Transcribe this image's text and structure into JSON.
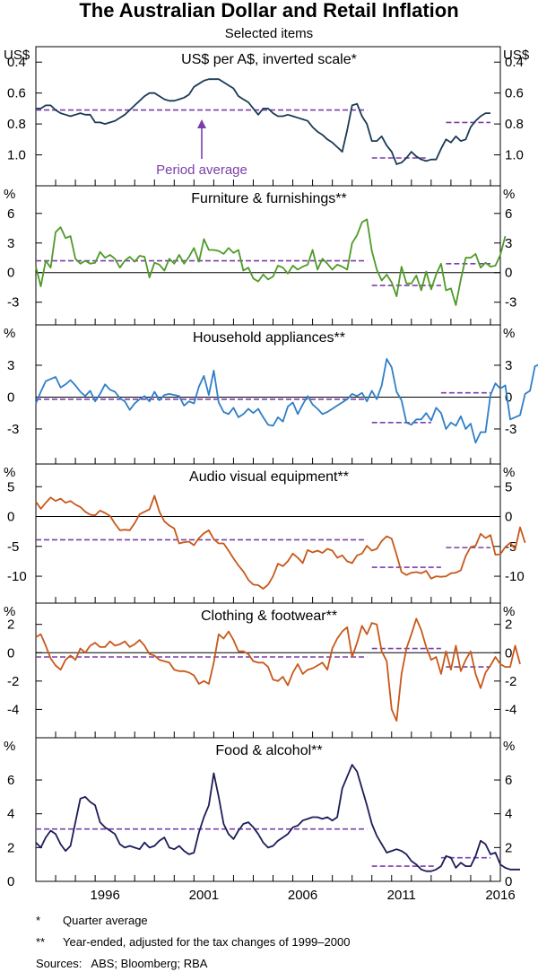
{
  "title": "The Australian Dollar and Retail Inflation",
  "subtitle": "Selected items",
  "x_ticks": [
    "1996",
    "2001",
    "2006",
    "2011",
    "2016"
  ],
  "footnotes": [
    {
      "mark": "*",
      "text": "Quarter average"
    },
    {
      "mark": "**",
      "text": "Year-ended, adjusted for the tax changes of 1999–2000"
    }
  ],
  "sources": "Sources:   ABS; Bloomberg; RBA",
  "annotation": "Period average",
  "colors": {
    "aud": "#1b3a57",
    "furniture": "#4e9a28",
    "appliances": "#2f7fc8",
    "audio": "#c8581a",
    "clothing": "#c8581a",
    "food": "#1c1c5a",
    "average": "#7a3fa8"
  },
  "chart_data": [
    {
      "type": "line",
      "title": "US$ per A$, inverted scale*",
      "unit": "US$",
      "inverted": true,
      "ylim": [
        0.3,
        1.2
      ],
      "yticks": [
        "0.4",
        "0.6",
        "0.8",
        "1.0"
      ],
      "x_start": 1993.0,
      "x_step": 0.25,
      "values": [
        0.7,
        0.7,
        0.68,
        0.68,
        0.71,
        0.73,
        0.74,
        0.75,
        0.74,
        0.73,
        0.74,
        0.74,
        0.79,
        0.79,
        0.8,
        0.79,
        0.78,
        0.76,
        0.74,
        0.71,
        0.68,
        0.65,
        0.62,
        0.6,
        0.6,
        0.62,
        0.64,
        0.65,
        0.65,
        0.64,
        0.63,
        0.61,
        0.56,
        0.54,
        0.52,
        0.51,
        0.51,
        0.51,
        0.53,
        0.55,
        0.57,
        0.62,
        0.64,
        0.66,
        0.7,
        0.74,
        0.7,
        0.7,
        0.73,
        0.75,
        0.75,
        0.74,
        0.75,
        0.76,
        0.77,
        0.78,
        0.82,
        0.85,
        0.87,
        0.9,
        0.92,
        0.95,
        0.98,
        0.84,
        0.68,
        0.67,
        0.75,
        0.8,
        0.91,
        0.91,
        0.88,
        0.94,
        0.98,
        1.06,
        1.05,
        1.02,
        0.98,
        1.01,
        1.03,
        1.04,
        1.03,
        1.03,
        0.96,
        0.9,
        0.92,
        0.88,
        0.91,
        0.9,
        0.82,
        0.78,
        0.75,
        0.73,
        0.73
      ],
      "average_segments": [
        {
          "x0": 1993.0,
          "x1": 2009.75,
          "value": 0.71
        },
        {
          "x0": 2010.0,
          "x1": 2012.75,
          "value": 1.02
        },
        {
          "x0": 2013.75,
          "x1": 2016.0,
          "value": 0.79
        }
      ]
    },
    {
      "type": "line",
      "title": "Furniture & furnishings**",
      "unit": "%",
      "ylim": [
        -5.3,
        8.8
      ],
      "yticks": [
        "6",
        "3",
        "0",
        "-3"
      ],
      "x_start": 1993.0,
      "x_step": 0.25,
      "values": [
        0.6,
        -1.4,
        1.2,
        0.5,
        4.1,
        4.6,
        3.5,
        3.7,
        1.4,
        0.9,
        1.2,
        0.9,
        1.0,
        2.1,
        1.5,
        1.8,
        1.4,
        0.5,
        1.2,
        1.6,
        1.1,
        1.7,
        1.6,
        -0.5,
        1.0,
        0.8,
        0.2,
        1.4,
        0.9,
        1.8,
        0.9,
        1.6,
        2.5,
        1.1,
        3.4,
        2.3,
        2.3,
        2.2,
        1.9,
        2.5,
        2.0,
        2.3,
        0.2,
        0.5,
        -0.6,
        -0.9,
        -0.2,
        -0.7,
        -0.4,
        0.7,
        0.5,
        -0.1,
        0.7,
        0.3,
        0.6,
        0.8,
        2.3,
        0.3,
        1.4,
        0.9,
        0.3,
        0.8,
        0.6,
        0.3,
        3.0,
        3.8,
        5.1,
        5.4,
        2.2,
        0.3,
        -0.8,
        -0.2,
        -1.0,
        -2.4,
        0.6,
        -1.1,
        -1.1,
        -0.3,
        -1.8,
        0.1,
        -1.7,
        -0.2,
        0.9,
        -1.8,
        -1.6,
        -3.3,
        -0.7,
        1.5,
        1.5,
        1.9,
        0.5,
        1.0,
        0.6,
        0.7,
        1.8,
        3.7
      ],
      "average_segments": [
        {
          "x0": 1993.0,
          "x1": 2009.75,
          "value": 1.2
        },
        {
          "x0": 2010.0,
          "x1": 2013.5,
          "value": -1.3
        },
        {
          "x0": 2013.75,
          "x1": 2016.0,
          "value": 0.9
        }
      ]
    },
    {
      "type": "line",
      "title": "Household appliances**",
      "unit": "%",
      "ylim": [
        -6.3,
        6.8
      ],
      "yticks": [
        "3",
        "0",
        "-3"
      ],
      "x_start": 1993.0,
      "x_step": 0.25,
      "values": [
        -0.6,
        0.5,
        1.5,
        1.7,
        1.9,
        0.9,
        1.2,
        1.6,
        1.1,
        0.5,
        0.1,
        0.6,
        -0.4,
        0.3,
        1.2,
        0.7,
        0.5,
        -0.1,
        -0.4,
        -1.2,
        -0.6,
        -0.2,
        0.1,
        -0.4,
        0.5,
        -0.3,
        0.2,
        0.3,
        0.2,
        0.1,
        -0.8,
        -0.4,
        -0.6,
        1.0,
        2.0,
        0.2,
        2.5,
        -0.5,
        -1.4,
        -1.6,
        -1.0,
        -1.9,
        -1.6,
        -1.1,
        -1.5,
        -1.1,
        -1.9,
        -2.6,
        -2.7,
        -1.9,
        -2.3,
        -0.9,
        -0.5,
        -1.6,
        -0.7,
        0.1,
        -0.7,
        -1.1,
        -1.6,
        -1.4,
        -1.1,
        -0.8,
        -0.5,
        -0.2,
        0.3,
        0.1,
        0.4,
        -0.4,
        0.6,
        -0.2,
        1.1,
        3.6,
        2.8,
        0.5,
        -0.3,
        -2.4,
        -2.6,
        -2.1,
        -2.1,
        -1.5,
        -2.2,
        -1.0,
        -1.5,
        -3.0,
        -2.4,
        -2.7,
        -1.8,
        -3.0,
        -2.5,
        -4.3,
        -3.3,
        -3.3,
        0.2,
        1.3,
        0.8,
        1.1,
        -2.1,
        -1.9,
        -1.7,
        0.3,
        0.6,
        2.9,
        3.1
      ],
      "average_segments": [
        {
          "x0": 1993.0,
          "x1": 2009.75,
          "value": -0.2
        },
        {
          "x0": 2010.0,
          "x1": 2013.0,
          "value": -2.4
        },
        {
          "x0": 2013.5,
          "x1": 2016.0,
          "value": 0.4
        }
      ]
    },
    {
      "type": "line",
      "title": "Audio visual equipment**",
      "unit": "%",
      "ylim": [
        -14.5,
        8.8
      ],
      "yticks": [
        "5",
        "0",
        "-5",
        "-10"
      ],
      "x_start": 1993.0,
      "x_step": 0.25,
      "values": [
        2.5,
        1.3,
        2.3,
        3.2,
        2.6,
        3.0,
        2.3,
        2.6,
        2.0,
        1.6,
        0.8,
        0.3,
        0.2,
        1.0,
        0.6,
        0.1,
        -1.2,
        -2.3,
        -2.2,
        -2.3,
        -1.1,
        0.4,
        0.8,
        1.2,
        3.5,
        0.8,
        -0.8,
        -1.5,
        -2.0,
        -4.5,
        -4.3,
        -4.2,
        -4.8,
        -3.6,
        -2.8,
        -2.3,
        -3.8,
        -4.5,
        -4.5,
        -5.7,
        -7.0,
        -8.2,
        -9.2,
        -10.6,
        -11.4,
        -11.5,
        -12.1,
        -11.4,
        -10.0,
        -7.9,
        -8.3,
        -7.5,
        -6.2,
        -6.9,
        -7.8,
        -5.6,
        -6.0,
        -5.7,
        -6.1,
        -5.4,
        -5.7,
        -6.9,
        -6.5,
        -7.5,
        -7.8,
        -6.5,
        -6.2,
        -4.9,
        -5.7,
        -5.4,
        -4.1,
        -3.3,
        -3.7,
        -6.4,
        -9.3,
        -9.8,
        -9.4,
        -9.3,
        -9.5,
        -9.1,
        -10.4,
        -10.0,
        -10.1,
        -10.0,
        -9.5,
        -9.4,
        -9.0,
        -6.6,
        -5.1,
        -4.9,
        -2.9,
        -3.6,
        -3.1,
        -6.4,
        -6.3,
        -5.1,
        -4.4,
        -5.5,
        -1.8,
        -4.4
      ],
      "average_segments": [
        {
          "x0": 1993.0,
          "x1": 2009.75,
          "value": -3.9
        },
        {
          "x0": 2010.0,
          "x1": 2013.5,
          "value": -8.5
        },
        {
          "x0": 2013.75,
          "x1": 2016.0,
          "value": -5.2
        }
      ]
    },
    {
      "type": "line",
      "title": "Clothing & footwear**",
      "unit": "%",
      "ylim": [
        -6.0,
        3.5
      ],
      "yticks": [
        "2",
        "0",
        "-2",
        "-4"
      ],
      "x_start": 1993.0,
      "x_step": 0.25,
      "values": [
        1.1,
        1.3,
        0.5,
        -0.4,
        -0.9,
        -1.2,
        -0.5,
        -0.2,
        -0.5,
        0.3,
        0.0,
        0.5,
        0.7,
        0.4,
        0.4,
        0.8,
        0.5,
        0.6,
        0.8,
        0.4,
        0.6,
        0.9,
        0.5,
        -0.1,
        -0.2,
        -0.5,
        -0.6,
        -0.7,
        -1.2,
        -1.3,
        -1.3,
        -1.4,
        -1.6,
        -2.2,
        -2.0,
        -2.2,
        -0.7,
        1.3,
        1.0,
        1.5,
        0.9,
        0.1,
        0.1,
        -0.1,
        -0.6,
        -0.7,
        -0.7,
        -1.0,
        -1.9,
        -2.0,
        -1.7,
        -2.3,
        -1.4,
        -0.8,
        -1.5,
        -1.2,
        -1.1,
        -0.9,
        -0.7,
        -1.2,
        0.3,
        1.0,
        1.5,
        1.8,
        -0.3,
        0.7,
        1.9,
        1.3,
        2.1,
        2.0,
        0.1,
        -0.6,
        -4.0,
        -4.8,
        -1.5,
        0.3,
        1.3,
        2.4,
        1.6,
        0.4,
        -0.5,
        -0.3,
        -1.5,
        0.1,
        -1.2,
        0.5,
        -1.3,
        -0.5,
        0.1,
        -1.5,
        -2.5,
        -1.4,
        -0.9,
        -0.3,
        -0.8,
        -1.0,
        -1.0,
        0.5,
        -0.8
      ],
      "average_segments": [
        {
          "x0": 1993.0,
          "x1": 2009.75,
          "value": -0.3
        },
        {
          "x0": 2010.0,
          "x1": 2013.5,
          "value": 0.3
        },
        {
          "x0": 2013.75,
          "x1": 2016.0,
          "value": -1.0
        }
      ]
    },
    {
      "type": "line",
      "title": "Food & alcohol**",
      "unit": "%",
      "ylim": [
        0.0,
        8.5
      ],
      "yticks": [
        "6",
        "4",
        "2",
        "0"
      ],
      "x_start": 1993.0,
      "x_step": 0.25,
      "values": [
        2.3,
        2.0,
        2.6,
        3.0,
        2.8,
        2.2,
        1.8,
        2.1,
        3.5,
        4.9,
        5.0,
        4.7,
        4.5,
        3.5,
        3.2,
        3.0,
        2.8,
        2.2,
        2.0,
        2.1,
        2.0,
        1.9,
        2.3,
        2.0,
        2.1,
        2.4,
        2.6,
        2.0,
        1.9,
        2.1,
        1.8,
        1.6,
        1.7,
        2.9,
        3.8,
        4.5,
        6.4,
        5.0,
        3.4,
        2.8,
        2.5,
        3.0,
        3.4,
        3.5,
        3.2,
        2.8,
        2.3,
        2.0,
        2.1,
        2.4,
        2.6,
        2.8,
        3.2,
        3.3,
        3.6,
        3.7,
        3.8,
        3.8,
        3.7,
        3.8,
        3.6,
        3.8,
        5.5,
        6.2,
        6.9,
        6.5,
        5.5,
        4.5,
        3.4,
        2.7,
        2.2,
        1.7,
        1.8,
        1.9,
        1.8,
        1.6,
        1.2,
        1.0,
        0.7,
        0.6,
        0.6,
        0.7,
        0.9,
        1.5,
        1.4,
        0.8,
        1.1,
        0.9,
        0.9,
        1.5,
        2.4,
        2.2,
        1.6,
        1.7,
        1.0,
        0.8,
        0.7,
        0.7,
        0.7
      ],
      "average_segments": [
        {
          "x0": 1993.0,
          "x1": 2009.75,
          "value": 3.1
        },
        {
          "x0": 2010.0,
          "x1": 2013.25,
          "value": 0.9
        },
        {
          "x0": 2013.5,
          "x1": 2016.0,
          "value": 1.4
        }
      ]
    }
  ]
}
